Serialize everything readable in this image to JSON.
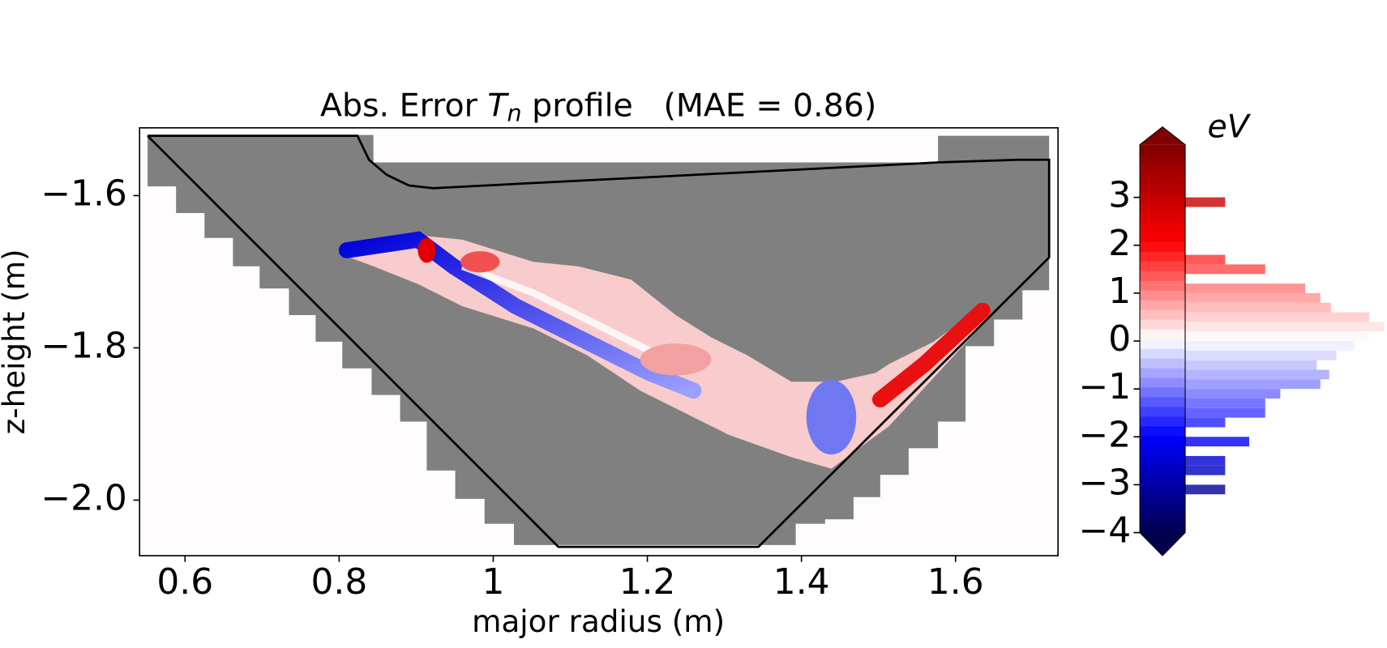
{
  "chart_data": {
    "type": "contour-histogram",
    "title": {
      "prefix": "Abs. Error ",
      "symbol": "T",
      "subscript": "n",
      "suffix": " profile   (MAE = 0.86)"
    },
    "x_label": "major radius (m)",
    "y_label": "z-height (m)",
    "xlim": [
      0.541,
      1.733
    ],
    "ylim": [
      -2.073,
      -1.511
    ],
    "xticks": [
      0.6,
      0.8,
      1.0,
      1.2,
      1.4,
      1.6
    ],
    "yticks": [
      {
        "value": -1.6,
        "label": "−1.6"
      },
      {
        "value": -1.8,
        "label": "−1.8"
      },
      {
        "value": -2.0,
        "label": "−2.0"
      }
    ],
    "colormap": "seismic",
    "colorbar_label": "eV",
    "clim": [
      -4,
      4.1
    ],
    "cticks": [
      3,
      2,
      1,
      0,
      {
        "value": -1,
        "label": "−1"
      },
      {
        "value": -2,
        "label": "−2"
      },
      {
        "value": -3,
        "label": "−3"
      },
      {
        "value": -4,
        "label": "−4"
      }
    ],
    "histogram": {
      "bins": [
        -3.2,
        -3.0,
        -2.8,
        -2.6,
        -2.4,
        -2.2,
        -2.0,
        -1.8,
        -1.6,
        -1.4,
        -1.2,
        -1.0,
        -0.8,
        -0.6,
        -0.4,
        -0.2,
        0.0,
        0.2,
        0.4,
        0.6,
        0.8,
        1.0,
        1.2,
        1.4,
        1.6,
        1.8,
        2.0,
        2.2,
        2.4,
        2.6,
        2.8,
        3.0
      ],
      "counts": [
        45,
        0,
        45,
        45,
        0,
        72,
        0,
        45,
        90,
        90,
        107,
        152,
        162,
        148,
        170,
        190,
        207,
        224,
        207,
        164,
        152,
        135,
        0,
        90,
        45,
        0,
        0,
        0,
        0,
        0,
        45
      ]
    }
  }
}
